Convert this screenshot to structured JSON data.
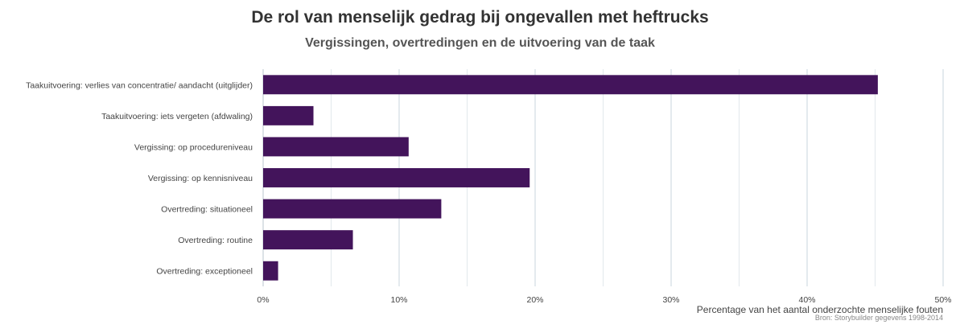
{
  "chart_data": {
    "type": "bar",
    "orientation": "horizontal",
    "title": "De rol van menselijk gedrag bij ongevallen met heftrucks",
    "subtitle": "Vergissingen, overtredingen en de uitvoering van de taak",
    "categories": [
      "Taakuitvoering: verlies van concentratie/ aandacht (uitglijder)",
      "Taakuitvoering: iets vergeten (afdwaling)",
      "Vergissing: op procedureniveau",
      "Vergissing: op kennisniveau",
      "Overtreding: situationeel",
      "Overtreding: routine",
      "Overtreding: exceptioneel"
    ],
    "values": [
      45.2,
      3.7,
      10.7,
      19.6,
      13.1,
      6.6,
      1.1
    ],
    "xlabel": "Percentage van het aantal onderzochte menselijke fouten",
    "ylabel": "",
    "xlim": [
      0,
      50
    ],
    "ticks": [
      0,
      10,
      20,
      30,
      40,
      50
    ],
    "tick_labels": [
      "0%",
      "10%",
      "20%",
      "30%",
      "40%",
      "50%"
    ],
    "source": "Bron: Storybuilder gegevens 1998-2014",
    "bar_color": "#43145b",
    "grid": "vertical"
  }
}
